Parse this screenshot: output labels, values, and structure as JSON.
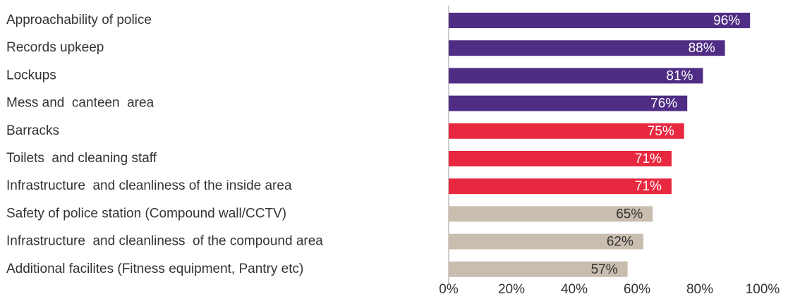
{
  "chart_data": {
    "type": "barh",
    "categories": [
      "Approachability of police",
      "Records upkeep",
      "Lockups",
      "Mess and  canteen  area",
      "Barracks",
      "Toilets  and cleaning staff",
      "Infrastructure  and cleanliness of the inside area",
      "Safety of police station (Compound wall/CCTV)",
      "Infrastructure  and cleanliness  of the compound area",
      "Additional facilites (Fitness equipment, Pantry etc)"
    ],
    "values": [
      96,
      88,
      81,
      76,
      75,
      71,
      71,
      65,
      62,
      57
    ],
    "value_labels": [
      "96%",
      "88%",
      "81%",
      "76%",
      "75%",
      "71%",
      "71%",
      "65%",
      "62%",
      "57%"
    ],
    "colors": [
      "#4f2d84",
      "#4f2d84",
      "#4f2d84",
      "#4f2d84",
      "#e8283f",
      "#e8283f",
      "#e8283f",
      "#c9bdb0",
      "#c9bdb0",
      "#c9bdb0"
    ],
    "value_label_colors": [
      "#ffffff",
      "#ffffff",
      "#ffffff",
      "#ffffff",
      "#ffffff",
      "#ffffff",
      "#ffffff",
      "#333333",
      "#333333",
      "#333333"
    ],
    "xlim": [
      0,
      100
    ],
    "xticks": [
      {
        "value": 0,
        "label": "0%"
      },
      {
        "value": 20,
        "label": "20%"
      },
      {
        "value": 40,
        "label": "40%"
      },
      {
        "value": 60,
        "label": "60%"
      },
      {
        "value": 80,
        "label": "80%"
      },
      {
        "value": 100,
        "label": "100%"
      }
    ],
    "grid": false
  }
}
